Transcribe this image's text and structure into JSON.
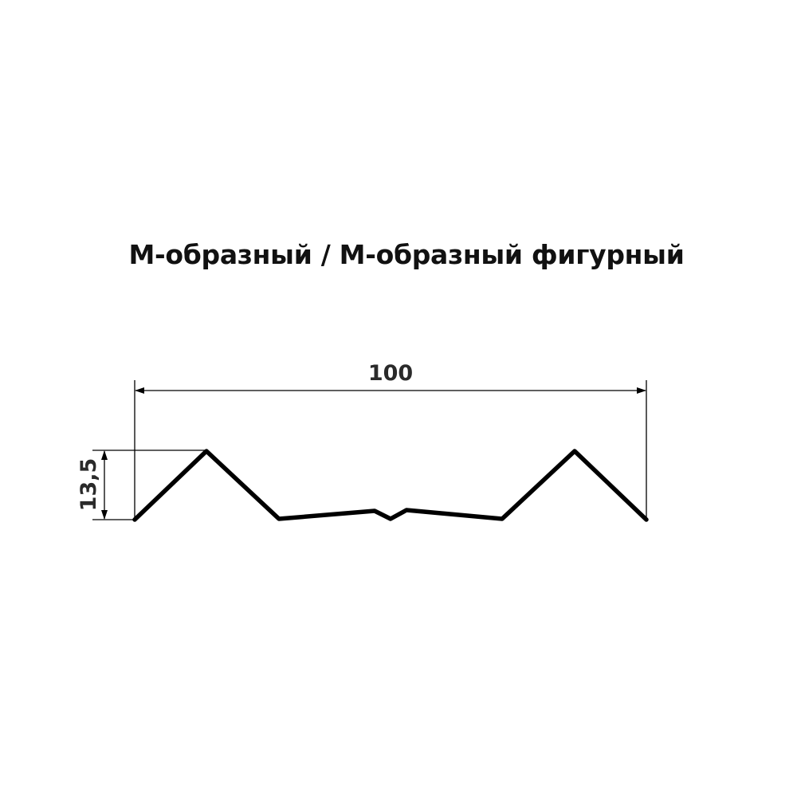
{
  "title": "М-образный / М-образный фигурный",
  "dimensions": {
    "width_label": "100",
    "height_label": "13,5"
  },
  "colors": {
    "line": "#000000",
    "text": "#111111"
  }
}
